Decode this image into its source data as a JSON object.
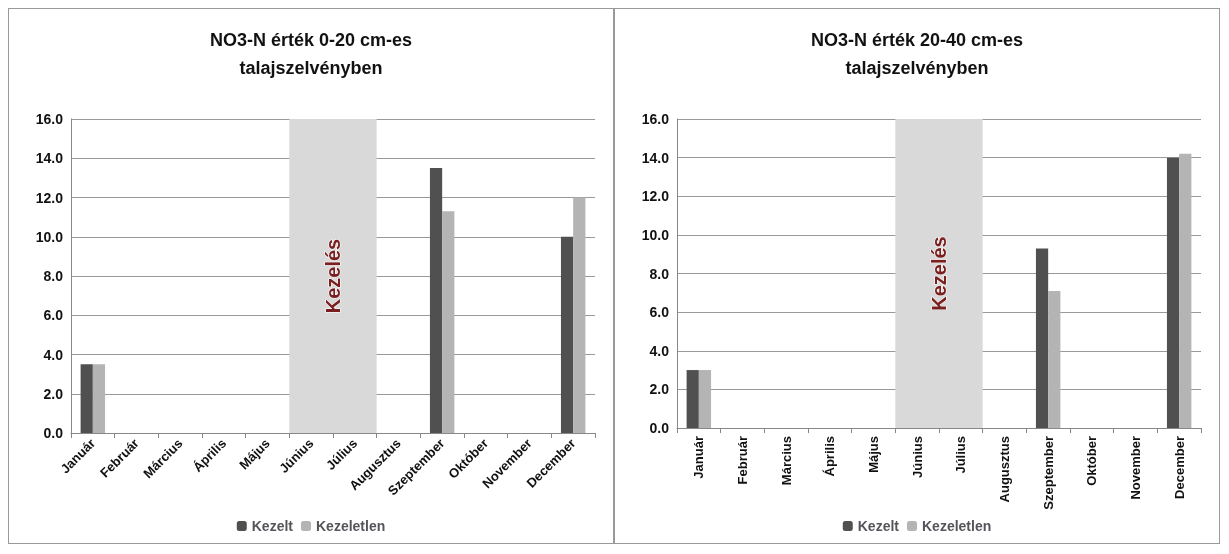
{
  "chart_data": [
    {
      "type": "bar",
      "title": "NO3-N érték 0-20 cm-es\ntalajszelvényben",
      "categories": [
        "Január",
        "Február",
        "Március",
        "Április",
        "Május",
        "Június",
        "Július",
        "Augusztus",
        "Szeptember",
        "Október",
        "November",
        "December"
      ],
      "series": [
        {
          "name": "Kezelt",
          "color": "#505050",
          "values": [
            3.5,
            null,
            null,
            null,
            null,
            null,
            null,
            null,
            13.5,
            null,
            null,
            10.0
          ]
        },
        {
          "name": "Kezeletlen",
          "color": "#b4b4b4",
          "values": [
            3.5,
            null,
            null,
            null,
            null,
            null,
            null,
            null,
            11.3,
            null,
            null,
            12.0
          ]
        }
      ],
      "ylim": [
        0,
        16
      ],
      "yticks": [
        {
          "value": 0,
          "label": "0.0"
        },
        {
          "value": 2,
          "label": "2.0"
        },
        {
          "value": 4,
          "label": "4.0"
        },
        {
          "value": 6,
          "label": "6.0"
        },
        {
          "value": 8,
          "label": "8.0"
        },
        {
          "value": 10,
          "label": "10.0"
        },
        {
          "value": 12,
          "label": "12.0"
        },
        {
          "value": 14,
          "label": "14.0"
        },
        {
          "value": 16,
          "label": "16.0"
        }
      ],
      "bands": [
        {
          "axis": "x",
          "from": "Június",
          "to": "Július",
          "label": "Kezelés",
          "color": "#d9d9d9"
        }
      ],
      "grid": "y",
      "legend": "bottom"
    },
    {
      "type": "bar",
      "title": "NO3-N érték 20-40 cm-es\ntalajszelvényben",
      "categories": [
        "Január",
        "Február",
        "Március",
        "Április",
        "Május",
        "Június",
        "Július",
        "Augusztus",
        "Szeptember",
        "Október",
        "November",
        "December"
      ],
      "series": [
        {
          "name": "Kezelt",
          "color": "#505050",
          "values": [
            3.0,
            null,
            null,
            null,
            null,
            null,
            null,
            null,
            9.3,
            null,
            null,
            14.0
          ]
        },
        {
          "name": "Kezeletlen",
          "color": "#b4b4b4",
          "values": [
            3.0,
            null,
            null,
            null,
            null,
            null,
            null,
            null,
            7.1,
            null,
            null,
            14.2
          ]
        }
      ],
      "ylim": [
        0,
        16
      ],
      "yticks": [
        {
          "value": 0,
          "label": "0.0"
        },
        {
          "value": 2,
          "label": "2.0"
        },
        {
          "value": 4,
          "label": "4.0"
        },
        {
          "value": 6,
          "label": "6.0"
        },
        {
          "value": 8,
          "label": "8.0"
        },
        {
          "value": 10,
          "label": "10.0"
        },
        {
          "value": 12,
          "label": "12.0"
        },
        {
          "value": 14,
          "label": "14.0"
        },
        {
          "value": 16,
          "label": "16.0"
        }
      ],
      "bands": [
        {
          "axis": "x",
          "from": "Június",
          "to": "Július",
          "label": "Kezelés",
          "color": "#d9d9d9"
        }
      ],
      "grid": "y",
      "legend": "bottom"
    }
  ]
}
